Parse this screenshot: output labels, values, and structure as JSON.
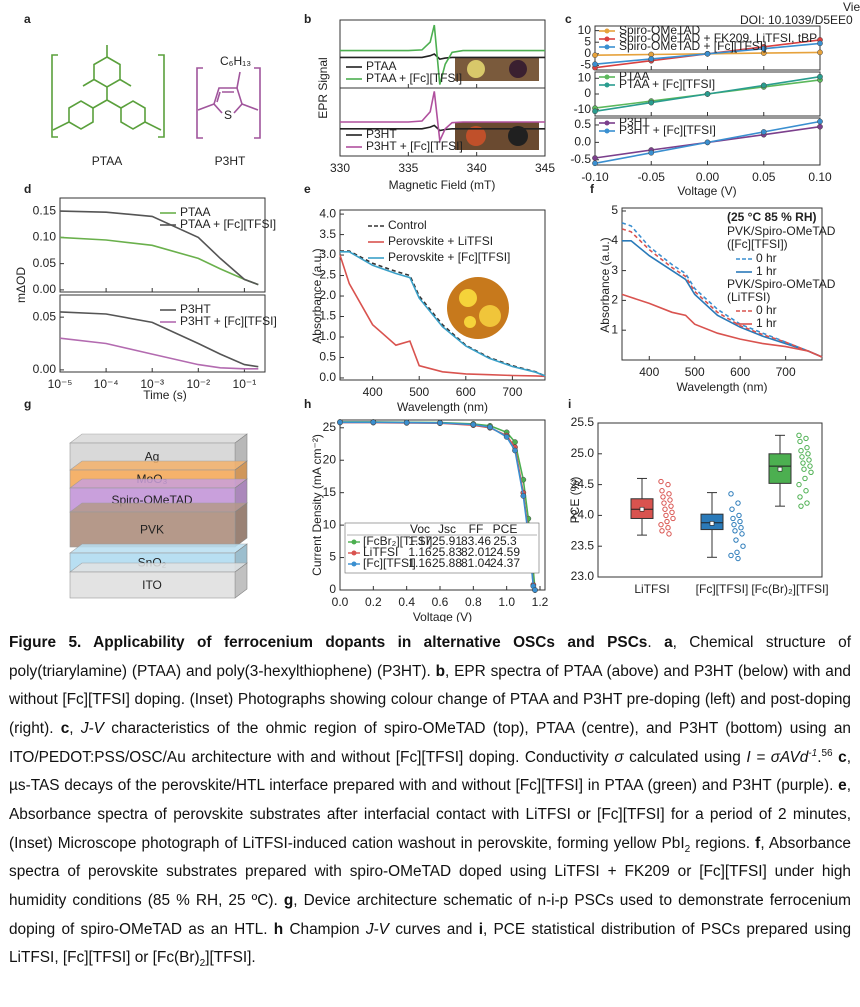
{
  "header": {
    "view_article": "View Article",
    "doi": "DOI: 10.1039/D5EE0"
  },
  "panels": {
    "a": {
      "label": "a",
      "polymers": [
        "PTAA",
        "P3HT"
      ],
      "substituent": "C₆H₁₃"
    },
    "b": {
      "type": "line",
      "label": "b",
      "xlabel": "Magnetic Field (mT)",
      "ylabel": "EPR Signal",
      "xlim": [
        330,
        345
      ],
      "xticks": [
        330,
        335,
        340,
        345
      ],
      "x": [
        330,
        335,
        336,
        336.6,
        336.9,
        337.3,
        337.7,
        338.2,
        339,
        345
      ],
      "plots": [
        {
          "ylim": [
            -1,
            1
          ],
          "series": [
            {
              "name": "PTAA",
              "color": "#222222",
              "values": [
                -0.1,
                -0.1,
                -0.1,
                -0.05,
                0,
                -0.15,
                -0.12,
                -0.1,
                -0.1,
                -0.1
              ]
            },
            {
              "name": "PTAA + [Fc][TFSI]",
              "color": "#4caf50",
              "values": [
                0.1,
                0.1,
                0.12,
                0.35,
                0.85,
                -0.9,
                -0.3,
                0.05,
                0.1,
                0.1
              ]
            }
          ]
        },
        {
          "ylim": [
            -1,
            1
          ],
          "series": [
            {
              "name": "P3HT",
              "color": "#222222",
              "values": [
                -0.2,
                -0.2,
                -0.2,
                -0.15,
                -0.1,
                -0.25,
                -0.22,
                -0.2,
                -0.2,
                -0.2
              ]
            },
            {
              "name": "P3HT + [Fc][TFSI]",
              "color": "#b0509e",
              "values": [
                0,
                0,
                0.03,
                0.3,
                0.9,
                -0.55,
                -0.2,
                -0.02,
                0,
                0
              ]
            }
          ]
        }
      ]
    },
    "c": {
      "type": "line",
      "label": "c",
      "xlabel": "Voltage (V)",
      "xlim": [
        -0.1,
        0.1
      ],
      "xticks": [
        {
          "value": -0.1,
          "label": "-0.10"
        },
        -0.05,
        {
          "value": 0,
          "label": "0.00"
        },
        0.05,
        {
          "value": 0.1,
          "label": "0.10"
        }
      ],
      "x": [
        -0.1,
        -0.05,
        0,
        0.05,
        0.1
      ],
      "plots": [
        {
          "ylim": [
            -7,
            12
          ],
          "yticks": [
            -5,
            0,
            5,
            10
          ],
          "series": [
            {
              "name": "Spiro-OMeTAD",
              "color": "#e6a23c",
              "marker": true,
              "values": [
                -0.6,
                -0.3,
                0,
                0.3,
                0.6
              ]
            },
            {
              "name": "Spiro-OMeTAD + FK209, LiTFSI, tBP",
              "color": "#d94040",
              "marker": true,
              "values": [
                -6,
                -3,
                0,
                3,
                6
              ]
            },
            {
              "name": "Spiro-OMeTAD + [Fc][TFSI]",
              "color": "#3a8fd0",
              "marker": true,
              "values": [
                -4.5,
                -2.2,
                0,
                2.2,
                4.5
              ]
            }
          ]
        },
        {
          "ylim": [
            -14,
            14
          ],
          "yticks": [
            -10,
            0,
            10
          ],
          "series": [
            {
              "name": "PTAA",
              "color": "#5cb85c",
              "marker": true,
              "values": [
                -9,
                -4.5,
                0,
                4.5,
                9
              ]
            },
            {
              "name": "PTAA + [Fc][TFSI]",
              "color": "#2a9d8f",
              "marker": true,
              "values": [
                -11,
                -5.5,
                0,
                5.5,
                11
              ]
            }
          ]
        },
        {
          "ylim": [
            -0.65,
            0.7
          ],
          "yticks": [
            -0.5,
            {
              "value": 0,
              "label": "0.0"
            },
            0.5
          ],
          "series": [
            {
              "name": "P3HT",
              "color": "#7b3f8c",
              "marker": true,
              "values": [
                -0.45,
                -0.22,
                0,
                0.22,
                0.45
              ]
            },
            {
              "name": "P3HT + [Fc][TFSI]",
              "color": "#3a8fd0",
              "marker": true,
              "values": [
                -0.6,
                -0.3,
                0,
                0.3,
                0.6
              ]
            }
          ]
        }
      ]
    },
    "d": {
      "type": "line",
      "label": "d",
      "xlabel": "Time (s)",
      "ylabel": "mΔOD",
      "log": true,
      "xlim": [
        1e-05,
        0.28
      ],
      "xticks": [
        {
          "value": 1e-05,
          "label": "10⁻⁵"
        },
        {
          "value": 0.0001,
          "label": "10⁻⁴"
        },
        {
          "value": 0.001,
          "label": "10⁻³"
        },
        {
          "value": 0.01,
          "label": "10⁻²"
        },
        {
          "value": 0.1,
          "label": "10⁻¹"
        }
      ],
      "x": [
        1e-05,
        0.0001,
        0.001,
        0.01,
        0.03,
        0.1,
        0.2
      ],
      "plots": [
        {
          "ylim": [
            -0.004,
            0.175
          ],
          "yticks": [
            {
              "value": 0,
              "label": "0.00"
            },
            0.05,
            {
              "value": 0.1,
              "label": "0.10"
            },
            0.15
          ],
          "series": [
            {
              "name": "PTAA",
              "color": "#6ab04c",
              "values": [
                0.1,
                0.095,
                0.085,
                0.06,
                0.04,
                0.02,
                0.01
              ]
            },
            {
              "name": "PTAA + [Fc][TFSI]",
              "color": "#555555",
              "values": [
                0.15,
                0.148,
                0.14,
                0.1,
                0.06,
                0.02,
                0.01
              ]
            }
          ]
        },
        {
          "ylim": [
            -0.002,
            0.071
          ],
          "yticks": [
            {
              "value": 0,
              "label": "0.00"
            },
            0.05
          ],
          "series": [
            {
              "name": "P3HT",
              "color": "#555555",
              "values": [
                0.055,
                0.053,
                0.045,
                0.025,
                0.015,
                0.005,
                0.003
              ]
            },
            {
              "name": "P3HT + [Fc][TFSI]",
              "color": "#b36bb0",
              "values": [
                0.03,
                0.025,
                0.015,
                0.005,
                0.002,
                0.001,
                0.001
              ]
            }
          ]
        }
      ]
    },
    "e": {
      "type": "line",
      "label": "e",
      "xlabel": "Wavelength (nm)",
      "ylabel": "Absorbance (a.u.)",
      "xlim": [
        330,
        770
      ],
      "xticks": [
        400,
        500,
        600,
        700
      ],
      "ylim": [
        -0.05,
        4.1
      ],
      "yticks": [
        {
          "value": 0,
          "label": "0.0"
        },
        0.5,
        {
          "value": 1,
          "label": "1.0"
        },
        1.5,
        {
          "value": 2,
          "label": "2.0"
        },
        2.5,
        {
          "value": 3,
          "label": "3.0"
        },
        3.5,
        {
          "value": 4,
          "label": "4.0"
        }
      ],
      "x": [
        330,
        350,
        400,
        450,
        480,
        500,
        550,
        600,
        650,
        700,
        750,
        770
      ],
      "series": [
        {
          "name": "Control",
          "color": "#333333",
          "dash": true,
          "values": [
            3.1,
            3.1,
            2.8,
            2.6,
            2.5,
            2,
            1.3,
            0.8,
            0.5,
            0.3,
            0.15,
            0.05
          ]
        },
        {
          "name": "Perovskite + LiTFSI",
          "color": "#d9534f",
          "values": [
            3,
            2.3,
            1.3,
            0.8,
            0.9,
            0.3,
            0.15,
            0.1,
            0.08,
            0.06,
            0.05,
            0.04
          ]
        },
        {
          "name": "Perovskite + [Fc][TFSI]",
          "color": "#3aa0c8",
          "values": [
            3.08,
            3.08,
            2.75,
            2.55,
            2.45,
            1.95,
            1.25,
            0.78,
            0.48,
            0.28,
            0.14,
            0.05
          ]
        }
      ]
    },
    "f": {
      "type": "line",
      "label": "f",
      "xlabel": "Wavelength (nm)",
      "ylabel": "Absorbance (a.u.)",
      "xlim": [
        340,
        780
      ],
      "xticks": [
        400,
        500,
        600,
        700
      ],
      "ylim": [
        0,
        5.1
      ],
      "yticks": [
        1,
        2,
        3,
        4,
        5
      ],
      "x": [
        340,
        360,
        400,
        450,
        480,
        500,
        550,
        600,
        650,
        700,
        750,
        780
      ],
      "conditions": "(25 °C 85 % RH)",
      "groups": [
        {
          "title": "PVK/Spiro-OMeTAD",
          "dopant": "([Fc][TFSI])"
        },
        {
          "title": "PVK/Spiro-OMeTAD",
          "dopant": "(LiTFSI)"
        }
      ],
      "series": [
        {
          "name": "0 hr",
          "color": "#3a8fd0",
          "dash": true,
          "values": [
            4.6,
            4.5,
            3.8,
            3.2,
            2.9,
            2.4,
            1.7,
            1.2,
            0.9,
            0.6,
            0.3,
            0.1
          ]
        },
        {
          "name": "1 hr",
          "color": "#2a7ab9",
          "values": [
            4,
            4,
            3.5,
            3,
            2.7,
            2.2,
            1.5,
            1.1,
            0.8,
            0.55,
            0.3,
            0.1
          ]
        },
        {
          "name": "0 hr",
          "color": "#d9534f",
          "dash": true,
          "values": [
            4.4,
            4.3,
            3.7,
            3.1,
            2.8,
            2.3,
            1.6,
            1.15,
            0.85,
            0.6,
            0.3,
            0.1
          ]
        },
        {
          "name": "1 hr",
          "color": "#d9534f",
          "values": [
            2.2,
            2.1,
            1.9,
            1.6,
            1.5,
            1.2,
            0.9,
            0.7,
            0.55,
            0.45,
            0.3,
            0.1
          ]
        }
      ]
    },
    "g": {
      "label": "g",
      "layers": [
        "Ag",
        "MoO₃",
        "Spiro-OMeTAD",
        "PVK",
        "SnO₂",
        "ITO"
      ]
    },
    "h": {
      "type": "line",
      "label": "h",
      "xlabel": "Voltage (V)",
      "ylabel": "Current Density (mA cm⁻²)",
      "xlim": [
        0,
        1.23
      ],
      "xticks": [
        {
          "value": 0,
          "label": "0.0"
        },
        0.2,
        0.4,
        0.6,
        0.8,
        {
          "value": 1,
          "label": "1.0"
        },
        1.2
      ],
      "ylim": [
        0,
        26.2
      ],
      "yticks": [
        0,
        5,
        10,
        15,
        20,
        25
      ],
      "x": [
        0,
        0.2,
        0.4,
        0.6,
        0.8,
        0.9,
        1,
        1.05,
        1.1,
        1.13,
        1.16,
        1.17
      ],
      "series": [
        {
          "color": "#4caf50",
          "marker": true,
          "values": [
            25.9,
            25.9,
            25.85,
            25.8,
            25.6,
            25.3,
            24.3,
            22.8,
            17,
            11,
            3,
            0
          ]
        },
        {
          "color": "#d9534f",
          "marker": true,
          "values": [
            25.8,
            25.8,
            25.75,
            25.7,
            25.4,
            25,
            23.8,
            22,
            15,
            9,
            0.8,
            0
          ]
        },
        {
          "color": "#3a8fd0",
          "marker": true,
          "values": [
            25.85,
            25.85,
            25.8,
            25.75,
            25.5,
            25.1,
            23.6,
            21.5,
            14.5,
            8.5,
            0.6,
            0
          ]
        }
      ],
      "table": {
        "headers": [
          "Voc",
          "Jsc",
          "FF",
          "PCE"
        ],
        "rows": [
          [
            "[FcBr₂][TFSI]",
            1.17,
            25.91,
            83.46,
            25.3
          ],
          [
            "LiTFSI",
            1.16,
            25.83,
            82.01,
            24.59
          ],
          [
            "[Fc][TFSI]",
            1.16,
            25.88,
            81.04,
            24.37
          ]
        ]
      }
    },
    "i": {
      "type": "box",
      "label": "i",
      "ylabel": "PCE (%)",
      "ylim": [
        23,
        25.5
      ],
      "yticks": [
        {
          "value": 23,
          "label": "23.0"
        },
        23.5,
        {
          "value": 24,
          "label": "24.0"
        },
        24.5,
        {
          "value": 25,
          "label": "25.0"
        },
        25.5
      ],
      "groups": [
        {
          "name": "LiTFSI",
          "color": "#d9534f",
          "whisker_low": 23.68,
          "q1": 23.95,
          "median": 24.1,
          "q3": 24.27,
          "whisker_high": 24.6,
          "mean": 24.1,
          "points": [
            24.55,
            24.5,
            24.4,
            24.35,
            24.3,
            24.25,
            24.2,
            24.15,
            24.1,
            24.05,
            24,
            23.95,
            23.9,
            23.85,
            23.8,
            23.75,
            23.7
          ]
        },
        {
          "name": "[Fc][TFSI]",
          "color": "#2a7ab9",
          "whisker_low": 23.32,
          "q1": 23.77,
          "median": 23.88,
          "q3": 24.02,
          "whisker_high": 24.37,
          "mean": 23.87,
          "points": [
            24.35,
            24.2,
            24.1,
            24,
            23.95,
            23.9,
            23.85,
            23.8,
            23.75,
            23.7,
            23.6,
            23.5,
            23.4,
            23.35,
            23.3
          ]
        },
        {
          "name": "[Fc(Br)₂][TFSI]",
          "color": "#4caf50",
          "whisker_low": 24.15,
          "q1": 24.52,
          "median": 24.8,
          "q3": 25,
          "whisker_high": 25.3,
          "mean": 24.75,
          "points": [
            25.3,
            25.25,
            25.2,
            25.1,
            25.05,
            25,
            24.95,
            24.9,
            24.85,
            24.8,
            24.75,
            24.7,
            24.6,
            24.5,
            24.4,
            24.3,
            24.2,
            24.15
          ]
        }
      ]
    }
  },
  "caption": [
    "Figure 5. Applicability of ferrocenium dopants in alternative OSCs and PSCs",
    ". ",
    "a",
    ", Chemical structure of poly(triarylamine) (PTAA) and poly(3-hexylthiophene) (P3HT). ",
    "b",
    ", EPR spectra of PTAA (above) and P3HT (below) with and without [Fc][TFSI] doping. (Inset) Photographs showing colour change of PTAA and P3HT pre-doping (left) and post-doping (right). ",
    "c",
    ", ",
    "J-V",
    " characteristics of the ohmic region of spiro-OMeTAD (top), PTAA (centre), and P3HT (bottom) using an ITO/PEDOT:PSS/OSC/Au architecture with and without [Fc][TFSI] doping. Conductivity ",
    "σ",
    " calculated using ",
    "I = σAVd",
    "-1",
    ".",
    "56",
    " ",
    "c",
    ", µs-TAS decays of the perovskite/HTL interface prepared with and without [Fc][TFSI] in PTAA (green) and P3HT (purple). ",
    "e",
    ", Absorbance spectra of perovskite substrates after interfacial contact with LiTFSI or [Fc][TFSI] for a period of 2 minutes, (Inset) Microscope photograph of LiTFSI-induced cation washout in perovskite, forming yellow PbI",
    "2",
    " regions. ",
    "f",
    ", Absorbance spectra of perovskite substrates prepared with spiro-OMeTAD doped using LiTFSI + FK209 or [Fc][TFSI] under high humidity conditions (85 % RH, 25  ºC). ",
    "g",
    ", Device architecture schematic of n-i-p PSCs used to demonstrate ferrocenium doping of spiro-OMeTAD as an HTL. ",
    "h",
    " Champion ",
    "J-V",
    " curves and ",
    "i",
    ", PCE statistical distribution of PSCs prepared using LiTFSI, [Fc][TFSI] or [Fc(Br)",
    "2",
    "][TFSI]."
  ]
}
